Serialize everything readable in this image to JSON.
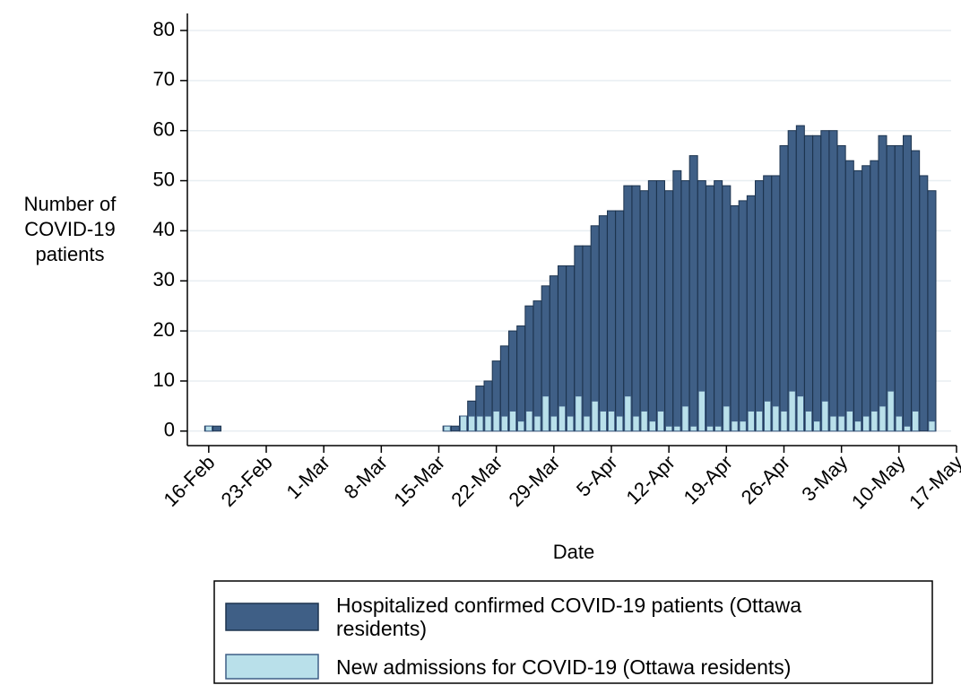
{
  "chart_data": {
    "type": "bar",
    "ylabel": [
      "Number of",
      "COVID-19",
      "patients"
    ],
    "xlabel": "Date",
    "x": [
      0,
      1,
      2,
      3,
      4,
      5,
      6,
      7,
      8,
      9,
      10,
      11,
      12,
      13,
      14,
      15,
      16,
      17,
      18,
      19,
      20,
      21,
      22,
      23,
      24,
      25,
      26,
      27,
      28,
      29,
      30,
      31,
      32,
      33,
      34,
      35,
      36,
      37,
      38,
      39,
      40,
      41,
      42,
      43,
      44,
      45,
      46,
      47,
      48,
      49,
      50,
      51,
      52,
      53,
      54,
      55,
      56,
      57,
      58,
      59,
      60,
      61,
      62,
      63,
      64,
      65,
      66,
      67,
      68,
      69,
      70,
      71,
      72,
      73,
      74,
      75,
      76,
      77,
      78,
      79,
      80,
      81,
      82,
      83,
      84,
      85,
      86,
      87,
      88
    ],
    "series": [
      {
        "name": "Hospitalized confirmed COVID-19 patients (Ottawa residents)",
        "color": "#3f5f86",
        "edge": "#1d344f",
        "values": [
          1,
          1,
          0,
          0,
          0,
          0,
          0,
          0,
          0,
          0,
          0,
          0,
          0,
          0,
          0,
          0,
          0,
          0,
          0,
          0,
          0,
          0,
          0,
          0,
          0,
          0,
          0,
          0,
          0,
          1,
          1,
          3,
          6,
          9,
          10,
          14,
          17,
          20,
          21,
          25,
          26,
          29,
          31,
          33,
          33,
          37,
          37,
          41,
          43,
          44,
          44,
          49,
          49,
          48,
          50,
          50,
          48,
          52,
          50,
          55,
          50,
          49,
          50,
          49,
          45,
          46,
          47,
          50,
          51,
          51,
          57,
          60,
          61,
          59,
          59,
          60,
          60,
          57,
          54,
          52,
          53,
          54,
          59,
          57,
          57,
          59,
          56,
          51,
          48
        ]
      },
      {
        "name": "New admissions for COVID-19 (Ottawa residents)",
        "color": "#b9e0ea",
        "edge": "#3f5f86",
        "values": [
          1,
          0,
          0,
          0,
          0,
          0,
          0,
          0,
          0,
          0,
          0,
          0,
          0,
          0,
          0,
          0,
          0,
          0,
          0,
          0,
          0,
          0,
          0,
          0,
          0,
          0,
          0,
          0,
          0,
          1,
          0,
          3,
          3,
          3,
          3,
          4,
          3,
          4,
          2,
          4,
          3,
          7,
          3,
          5,
          3,
          7,
          3,
          6,
          4,
          4,
          3,
          7,
          3,
          4,
          2,
          4,
          1,
          1,
          5,
          1,
          8,
          1,
          1,
          5,
          2,
          2,
          4,
          4,
          6,
          5,
          4,
          8,
          7,
          4,
          2,
          6,
          3,
          3,
          4,
          2,
          3,
          4,
          5,
          8,
          3,
          1,
          4,
          0,
          2
        ]
      }
    ],
    "xlim": [
      -2.6,
      91
    ],
    "xticks": [
      {
        "value": 0,
        "label": "16-Feb"
      },
      {
        "value": 7,
        "label": "23-Feb"
      },
      {
        "value": 14,
        "label": "1-Mar"
      },
      {
        "value": 21,
        "label": "8-Mar"
      },
      {
        "value": 28,
        "label": "15-Mar"
      },
      {
        "value": 35,
        "label": "22-Mar"
      },
      {
        "value": 42,
        "label": "29-Mar"
      },
      {
        "value": 49,
        "label": "5-Apr"
      },
      {
        "value": 56,
        "label": "12-Apr"
      },
      {
        "value": 63,
        "label": "19-Apr"
      },
      {
        "value": 70,
        "label": "26-Apr"
      },
      {
        "value": 77,
        "label": "3-May"
      },
      {
        "value": 84,
        "label": "10-May"
      },
      {
        "value": 91,
        "label": "17-May"
      }
    ],
    "ylim": [
      -2.9,
      83.4
    ],
    "yticks": [
      0,
      10,
      20,
      30,
      40,
      50,
      60,
      70,
      80
    ],
    "grid": true
  }
}
